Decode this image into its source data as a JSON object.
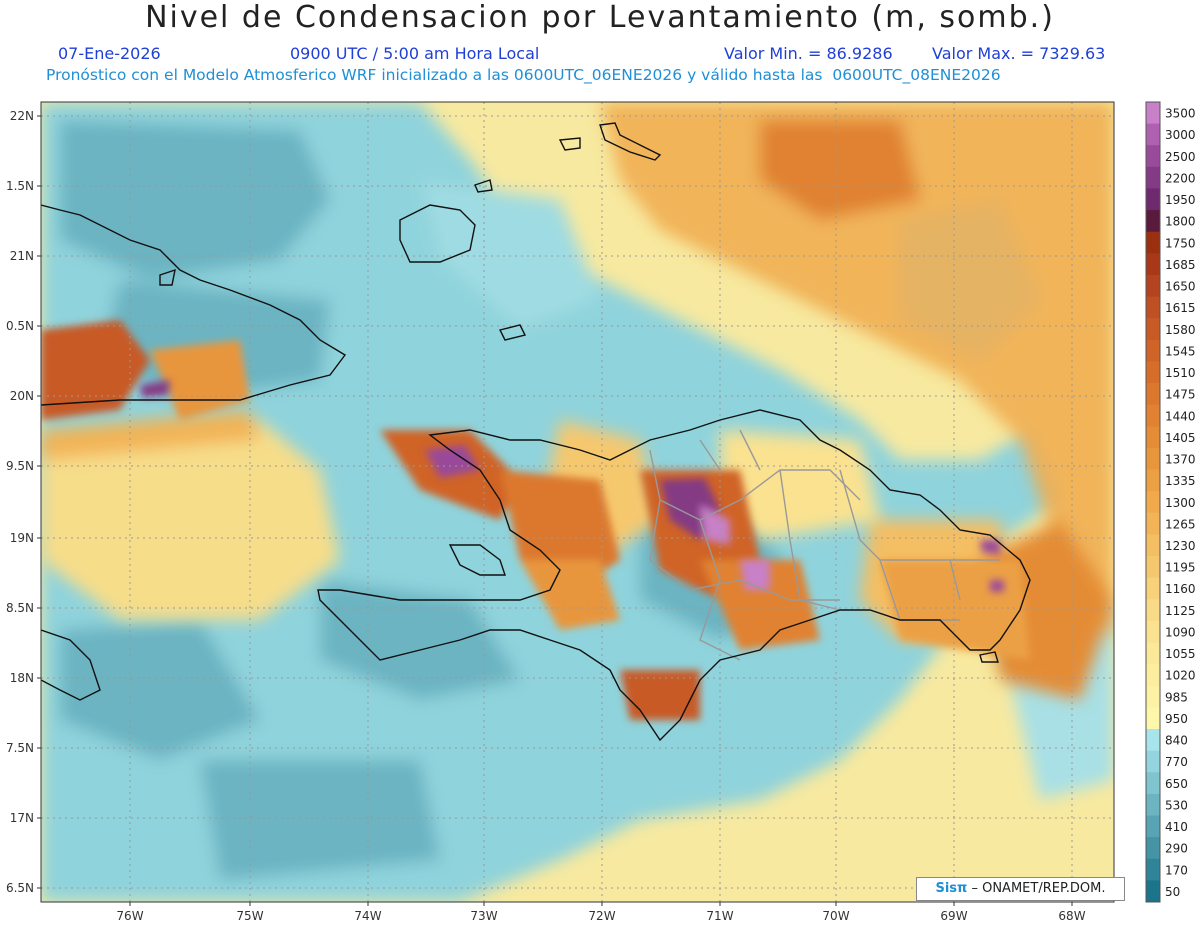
{
  "header": {
    "title": "Nivel de Condensacion por Levantamiento (m, somb.)",
    "date": "07-Ene-2026",
    "time": "0900 UTC / 5:00 am Hora Local",
    "min": "Valor Min. = 86.9286",
    "max": "Valor Max. = 7329.63",
    "forecast": "Pronóstico con el Modelo Atmosferico WRF inicializado a las 0600UTC_06ENE2026 y válido hasta las  0600UTC_08ENE2026"
  },
  "axes": {
    "lat_labels": [
      "22N",
      "1.5N",
      "21N",
      "0.5N",
      "20N",
      "9.5N",
      "19N",
      "8.5N",
      "18N",
      "7.5N",
      "17N",
      "6.5N"
    ],
    "lon_labels": [
      "76W",
      "75W",
      "74W",
      "73W",
      "72W",
      "71W",
      "70W",
      "69W",
      "68W"
    ]
  },
  "legend": {
    "levels": [
      "3500",
      "3000",
      "2500",
      "2200",
      "1950",
      "1800",
      "1750",
      "1685",
      "1650",
      "1615",
      "1580",
      "1545",
      "1510",
      "1475",
      "1440",
      "1405",
      "1370",
      "1335",
      "1300",
      "1265",
      "1230",
      "1195",
      "1160",
      "1125",
      "1090",
      "1055",
      "1020",
      "985",
      "950",
      "840",
      "770",
      "650",
      "530",
      "410",
      "290",
      "170",
      "50"
    ],
    "colors": [
      "#c880c8",
      "#b060b0",
      "#9a4a9a",
      "#843a84",
      "#6e2a6e",
      "#5a1a3c",
      "#9a3010",
      "#a83818",
      "#b44420",
      "#be5024",
      "#c85a26",
      "#d06428",
      "#d66e2a",
      "#dc782e",
      "#e08232",
      "#e48c36",
      "#e8963c",
      "#eca044",
      "#f0aa4c",
      "#f2b456",
      "#f4be62",
      "#f6c86e",
      "#f8d27a",
      "#f9da86",
      "#fae290",
      "#fbe898",
      "#fcee9e",
      "#fdf2a4",
      "#fef6aa",
      "#a8e4ec",
      "#94d4de",
      "#80c4d0",
      "#6cb4c2",
      "#58a4b4",
      "#4494a6",
      "#308498",
      "#1c748a"
    ]
  },
  "credit": {
    "sis": "Sisπ",
    "org": "– ONAMET/REP.DOM."
  },
  "colors": {
    "ocean_base": "#f7e9a0",
    "cyan": "#8fd3dc",
    "teal": "#6cb4c2",
    "orange": "#e8963c",
    "brown": "#b44420",
    "purple": "#9a4a9a",
    "coast": "#111111",
    "border": "#999999"
  }
}
